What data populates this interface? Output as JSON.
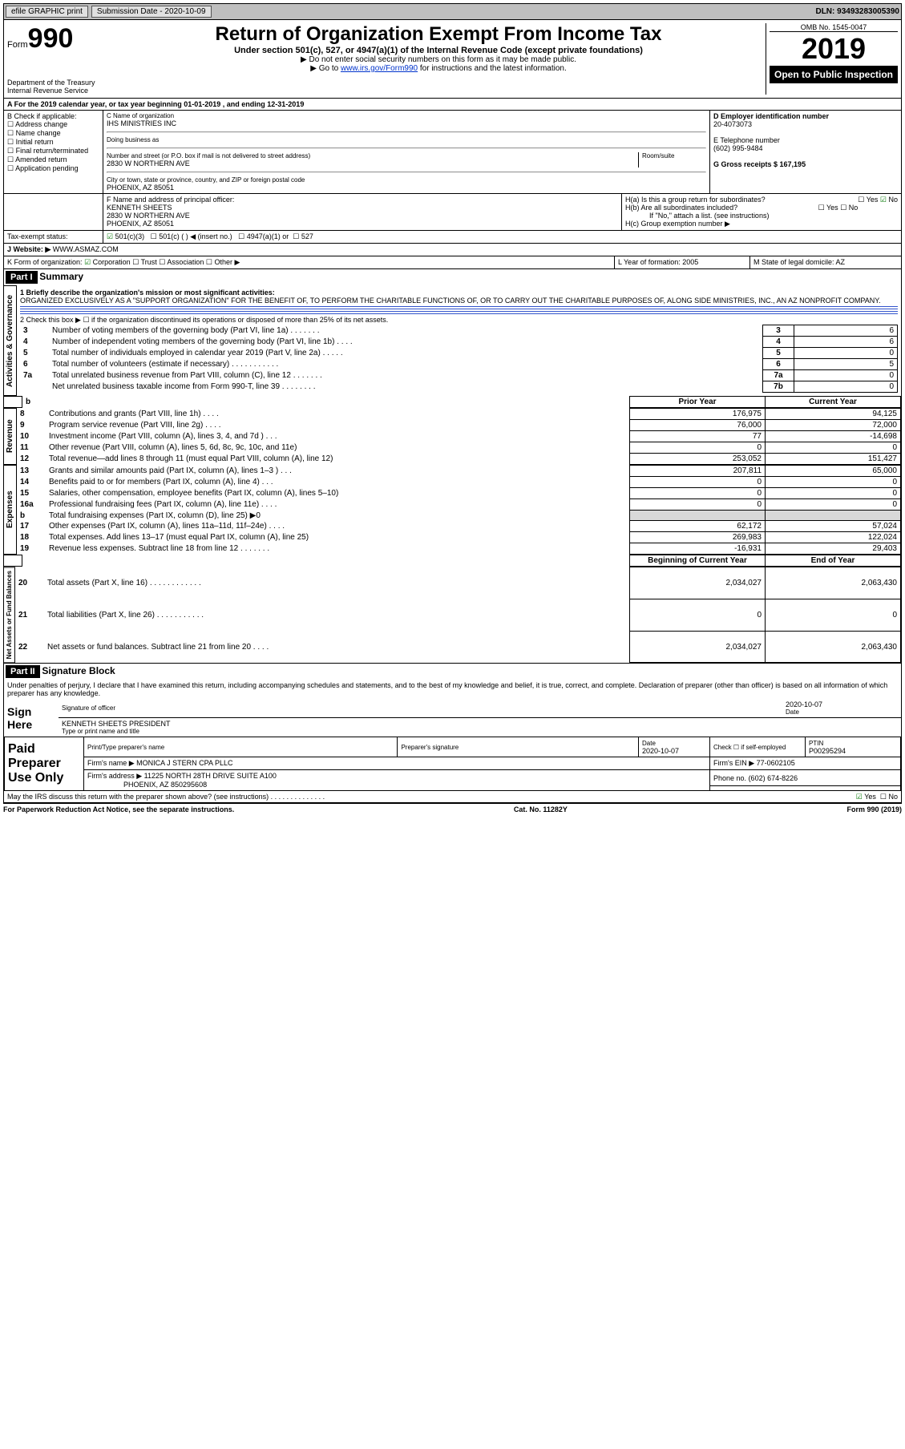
{
  "topbar": {
    "efile": "efile GRAPHIC print",
    "submission_label": "Submission Date - 2020-10-09",
    "dln_label": "DLN: 93493283005390"
  },
  "header": {
    "form_word": "Form",
    "form_num": "990",
    "dept": "Department of the Treasury\nInternal Revenue Service",
    "title": "Return of Organization Exempt From Income Tax",
    "sub": "Under section 501(c), 527, or 4947(a)(1) of the Internal Revenue Code (except private foundations)",
    "line1": "▶ Do not enter social security numbers on this form as it may be made public.",
    "line2_pre": "▶ Go to ",
    "line2_link": "www.irs.gov/Form990",
    "line2_post": " for instructions and the latest information.",
    "omb": "OMB No. 1545-0047",
    "year": "2019",
    "open": "Open to Public Inspection"
  },
  "row_a": "A For the 2019 calendar year, or tax year beginning 01-01-2019   , and ending 12-31-2019",
  "box_b": {
    "label": "B Check if applicable:",
    "items": [
      "Address change",
      "Name change",
      "Initial return",
      "Final return/terminated",
      "Amended return",
      "Application pending"
    ]
  },
  "box_c": {
    "name_label": "C Name of organization",
    "name": "IHS MINISTRIES INC",
    "dba_label": "Doing business as",
    "addr_label": "Number and street (or P.O. box if mail is not delivered to street address)",
    "room_label": "Room/suite",
    "addr": "2830 W NORTHERN AVE",
    "city_label": "City or town, state or province, country, and ZIP or foreign postal code",
    "city": "PHOENIX, AZ  85051"
  },
  "box_d": {
    "label": "D Employer identification number",
    "val": "20-4073073"
  },
  "box_e": {
    "label": "E Telephone number",
    "val": "(602) 995-9484"
  },
  "box_g": {
    "label": "G Gross receipts $ 167,195"
  },
  "box_f": {
    "label": "F  Name and address of principal officer:",
    "name": "KENNETH SHEETS",
    "addr1": "2830 W NORTHERN AVE",
    "addr2": "PHOENIX, AZ  85051"
  },
  "box_h": {
    "a": "H(a)  Is this a group return for subordinates?",
    "a_yes": "Yes",
    "a_no": "No",
    "b": "H(b)  Are all subordinates included?",
    "b_yes": "Yes",
    "b_no": "No",
    "b_note": "If \"No,\" attach a list. (see instructions)",
    "c": "H(c)  Group exemption number ▶"
  },
  "tax_status": {
    "label": "Tax-exempt status:",
    "a": "501(c)(3)",
    "b": "501(c) (  ) ◀ (insert no.)",
    "c": "4947(a)(1) or",
    "d": "527"
  },
  "box_j": {
    "label": "J   Website: ▶",
    "val": "WWW.ASMAZ.COM"
  },
  "box_k": {
    "label": "K Form of organization:",
    "a": "Corporation",
    "b": "Trust",
    "c": "Association",
    "d": "Other ▶"
  },
  "box_l": {
    "label": "L Year of formation: 2005"
  },
  "box_m": {
    "label": "M State of legal domicile: AZ"
  },
  "part1": {
    "bar": "Part I",
    "title": "Summary",
    "l1_label": "1  Briefly describe the organization's mission or most significant activities:",
    "l1_text": "ORGANIZED EXCLUSIVELY AS A \"SUPPORT ORGANIZATION\" FOR THE BENEFIT OF, TO PERFORM THE CHARITABLE FUNCTIONS OF, OR TO CARRY OUT THE CHARITABLE PURPOSES OF, ALONG SIDE MINISTRIES, INC., AN AZ NONPROFIT COMPANY.",
    "l2": "2   Check this box ▶ ☐  if the organization discontinued its operations or disposed of more than 25% of its net assets.",
    "activities_label": "Activities & Governance",
    "revenue_label": "Revenue",
    "expenses_label": "Expenses",
    "netassets_label": "Net Assets or Fund Balances",
    "col_prior": "Prior Year",
    "col_current": "Current Year",
    "col_boy": "Beginning of Current Year",
    "col_eoy": "End of Year",
    "rows_top": [
      {
        "n": "3",
        "t": "Number of voting members of the governing body (Part VI, line 1a)  .   .   .   .   .   .   .",
        "box": "3",
        "v": "6"
      },
      {
        "n": "4",
        "t": "Number of independent voting members of the governing body (Part VI, line 1b)  .   .   .   .",
        "box": "4",
        "v": "6"
      },
      {
        "n": "5",
        "t": "Total number of individuals employed in calendar year 2019 (Part V, line 2a)  .   .   .   .   .",
        "box": "5",
        "v": "0"
      },
      {
        "n": "6",
        "t": "Total number of volunteers (estimate if necessary)   .   .   .   .   .   .   .   .   .   .   .",
        "box": "6",
        "v": "5"
      },
      {
        "n": "7a",
        "t": "Total unrelated business revenue from Part VIII, column (C), line 12   .   .   .   .   .   .   .",
        "box": "7a",
        "v": "0"
      },
      {
        "n": "",
        "t": "Net unrelated business taxable income from Form 990-T, line 39   .   .   .   .   .   .   .   .",
        "box": "7b",
        "v": "0"
      }
    ],
    "rows_rev": [
      {
        "n": "8",
        "t": "Contributions and grants (Part VIII, line 1h)   .   .   .   .",
        "py": "176,975",
        "cy": "94,125"
      },
      {
        "n": "9",
        "t": "Program service revenue (Part VIII, line 2g)   .   .   .   .",
        "py": "76,000",
        "cy": "72,000"
      },
      {
        "n": "10",
        "t": "Investment income (Part VIII, column (A), lines 3, 4, and 7d )   .   .   .",
        "py": "77",
        "cy": "-14,698"
      },
      {
        "n": "11",
        "t": "Other revenue (Part VIII, column (A), lines 5, 6d, 8c, 9c, 10c, and 11e)",
        "py": "0",
        "cy": "0"
      },
      {
        "n": "12",
        "t": "Total revenue—add lines 8 through 11 (must equal Part VIII, column (A), line 12)",
        "py": "253,052",
        "cy": "151,427"
      }
    ],
    "rows_exp": [
      {
        "n": "13",
        "t": "Grants and similar amounts paid (Part IX, column (A), lines 1–3 )   .   .   .",
        "py": "207,811",
        "cy": "65,000"
      },
      {
        "n": "14",
        "t": "Benefits paid to or for members (Part IX, column (A), line 4)   .   .   .",
        "py": "0",
        "cy": "0"
      },
      {
        "n": "15",
        "t": "Salaries, other compensation, employee benefits (Part IX, column (A), lines 5–10)",
        "py": "0",
        "cy": "0"
      },
      {
        "n": "16a",
        "t": "Professional fundraising fees (Part IX, column (A), line 11e)   .   .   .   .",
        "py": "0",
        "cy": "0"
      },
      {
        "n": "b",
        "t": "Total fundraising expenses (Part IX, column (D), line 25) ▶0",
        "py": "",
        "cy": "",
        "shade": true
      },
      {
        "n": "17",
        "t": "Other expenses (Part IX, column (A), lines 11a–11d, 11f–24e)   .   .   .   .",
        "py": "62,172",
        "cy": "57,024"
      },
      {
        "n": "18",
        "t": "Total expenses. Add lines 13–17 (must equal Part IX, column (A), line 25)",
        "py": "269,983",
        "cy": "122,024"
      },
      {
        "n": "19",
        "t": "Revenue less expenses. Subtract line 18 from line 12   .   .   .   .   .   .   .",
        "py": "-16,931",
        "cy": "29,403"
      }
    ],
    "rows_net": [
      {
        "n": "20",
        "t": "Total assets (Part X, line 16)  .   .   .   .   .   .   .   .   .   .   .   .",
        "py": "2,034,027",
        "cy": "2,063,430"
      },
      {
        "n": "21",
        "t": "Total liabilities (Part X, line 26)  .   .   .   .   .   .   .   .   .   .   .",
        "py": "0",
        "cy": "0"
      },
      {
        "n": "22",
        "t": "Net assets or fund balances. Subtract line 21 from line 20   .   .   .   .",
        "py": "2,034,027",
        "cy": "2,063,430"
      }
    ]
  },
  "part2": {
    "bar": "Part II",
    "title": "Signature Block",
    "penalty": "Under penalties of perjury, I declare that I have examined this return, including accompanying schedules and statements, and to the best of my knowledge and belief, it is true, correct, and complete. Declaration of preparer (other than officer) is based on all information of which preparer has any knowledge.",
    "sign_here": "Sign Here",
    "sig_officer": "Signature of officer",
    "sig_date": "2020-10-07",
    "date_label": "Date",
    "officer_name": "KENNETH SHEETS PRESIDENT",
    "type_name": "Type or print name and title",
    "paid": "Paid Preparer Use Only",
    "prep_name_label": "Print/Type preparer's name",
    "prep_sig_label": "Preparer's signature",
    "prep_date_label": "Date",
    "prep_date": "2020-10-07",
    "check_self": "Check ☐ if self-employed",
    "ptin_label": "PTIN",
    "ptin": "P00295294",
    "firm_name_label": "Firm's name    ▶",
    "firm_name": "MONICA J STERN CPA PLLC",
    "firm_ein_label": "Firm's EIN ▶",
    "firm_ein": "77-0602105",
    "firm_addr_label": "Firm's address ▶",
    "firm_addr1": "11225 NORTH 28TH DRIVE SUITE A100",
    "firm_addr2": "PHOENIX, AZ  850295608",
    "phone_label": "Phone no.",
    "phone": "(602) 674-8226",
    "discuss": "May the IRS discuss this return with the preparer shown above? (see instructions)   .   .   .   .   .   .   .   .   .   .   .   .   .   .",
    "discuss_yes": "Yes",
    "discuss_no": "No"
  },
  "footer": {
    "left": "For Paperwork Reduction Act Notice, see the separate instructions.",
    "mid": "Cat. No. 11282Y",
    "right": "Form 990 (2019)"
  }
}
